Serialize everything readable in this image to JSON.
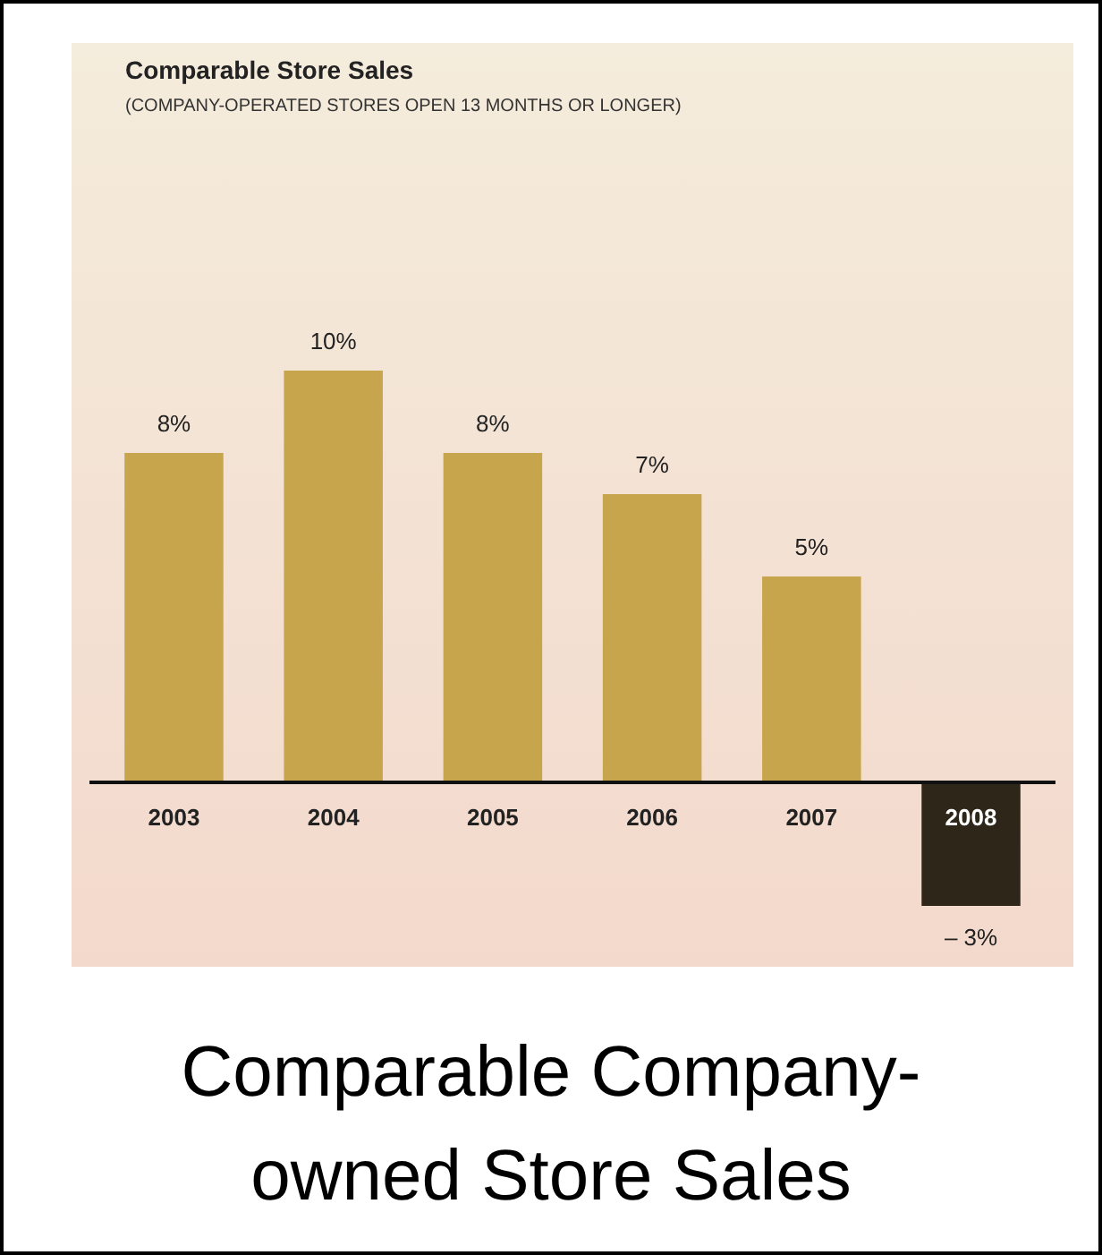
{
  "chart_data": {
    "type": "bar",
    "title": "Comparable Store Sales",
    "subtitle": "(COMPANY-OPERATED STORES OPEN 13 MONTHS OR LONGER)",
    "categories": [
      "2003",
      "2004",
      "2005",
      "2006",
      "2007",
      "2008"
    ],
    "values": [
      8,
      10,
      8,
      7,
      5,
      -3
    ],
    "colors": [
      "#c6a54c",
      "#c6a54c",
      "#c6a54c",
      "#c6a54c",
      "#c6a54c",
      "#2e2619"
    ],
    "value_labels": [
      "8%",
      "10%",
      "8%",
      "7%",
      "5%",
      "– 3%"
    ],
    "annotations": [
      "Comparable Company-owned Store Sales"
    ],
    "grid": false
  }
}
